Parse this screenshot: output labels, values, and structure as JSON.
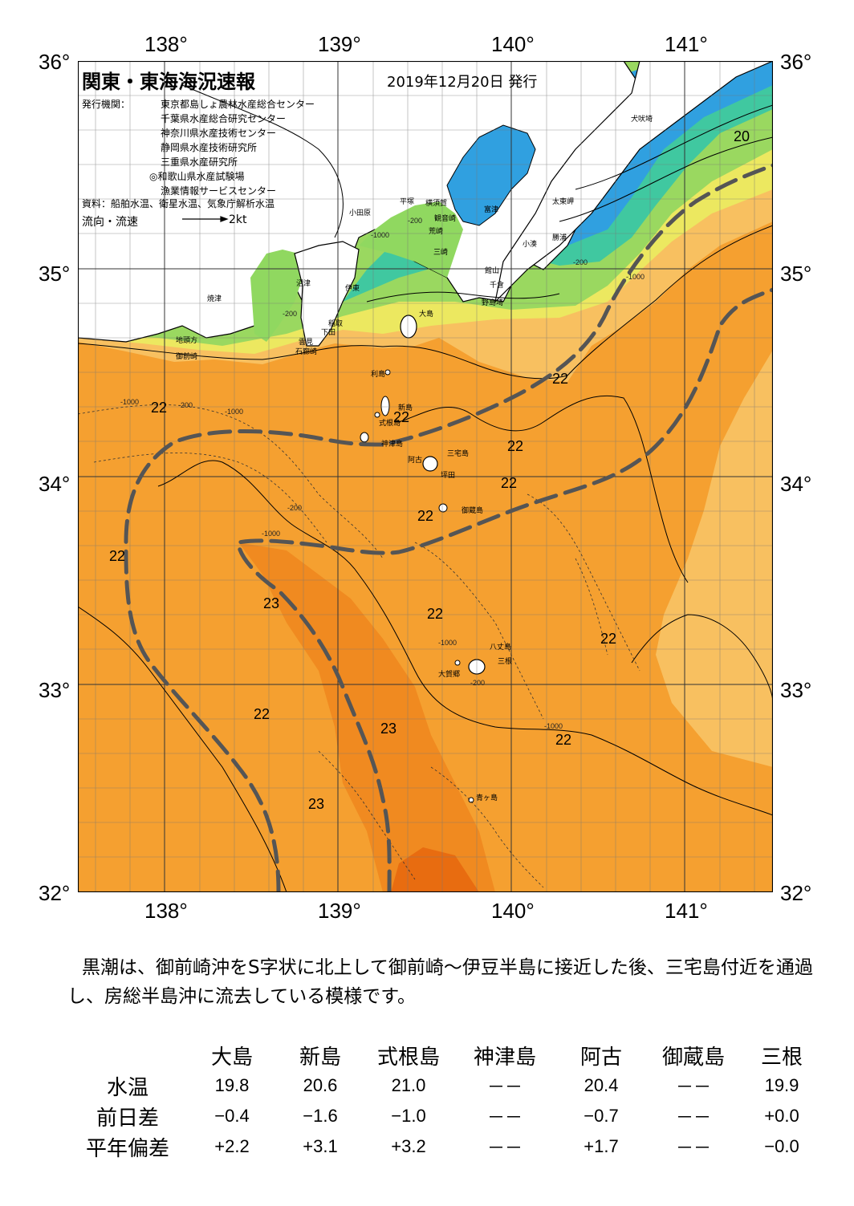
{
  "map": {
    "title": "関東・東海海況速報",
    "date": "2019年12月20日 発行",
    "issuer_label": "発行機関：",
    "issuers": [
      "東京都島しょ農林水産総合センター",
      "千葉県水産総合研究センター",
      "神奈川県水産技術センター",
      "静岡県水産技術研究所",
      "三重県水産研究所",
      "◎和歌山県水産試験場",
      "漁業情報サービスセンター"
    ],
    "source": "資料：船舶水温、衛星水温、気象庁解析水温",
    "flow_label": "流向・流速",
    "flow_scale": "2kt",
    "lon_labels": [
      "138°",
      "139°",
      "140°",
      "141°"
    ],
    "lat_labels": [
      "36°",
      "35°",
      "34°",
      "33°",
      "32°"
    ],
    "places": [
      "犬吠埼",
      "太東岬",
      "勝浦",
      "小湊",
      "館山",
      "千倉",
      "野島埼",
      "富津",
      "横須賀",
      "観音崎",
      "荒崎",
      "三崎",
      "平塚",
      "小田原",
      "沼津",
      "伊東",
      "焼津",
      "稲取",
      "下田",
      "雲見",
      "石廊崎",
      "地頭方",
      "御前崎",
      "大島",
      "利島",
      "新島",
      "式根島",
      "神津島",
      "三宅島",
      "阿古",
      "坪田",
      "御蔵島",
      "八丈島",
      "三根",
      "大賀郷",
      "青ヶ島"
    ],
    "temp_labels": [
      "20",
      "22",
      "22",
      "22",
      "22",
      "22",
      "22",
      "22",
      "22",
      "22",
      "22",
      "22",
      "23",
      "23",
      "23"
    ],
    "contour_labels": [
      "-200",
      "-1000",
      "-200",
      "-1000",
      "-200",
      "-1000",
      "-200",
      "-1000",
      "-200",
      "-1000",
      "-1000",
      "-1000",
      "-200"
    ]
  },
  "description": "黒潮は、御前崎沖をS字状に北上して御前崎～伊豆半島に接近した後、三宅島付近を通過し、房総半島沖に流去している模様です。",
  "table": {
    "columns": [
      "大島",
      "新島",
      "式根島",
      "神津島",
      "阿古",
      "御蔵島",
      "三根"
    ],
    "rows": [
      {
        "label": "水温",
        "values": [
          "19.8",
          "20.6",
          "21.0",
          "－－",
          "20.4",
          "－－",
          "19.9"
        ]
      },
      {
        "label": "前日差",
        "values": [
          "−0.4",
          "−1.6",
          "−1.0",
          "－－",
          "−0.7",
          "－－",
          "+0.0"
        ]
      },
      {
        "label": "平年偏差",
        "values": [
          "+2.2",
          "+3.1",
          "+3.2",
          "－－",
          "+1.7",
          "－－",
          "−0.0"
        ]
      }
    ]
  },
  "colors": {
    "warm_23": "#f08a20",
    "warm_22": "#f5a030",
    "mid_21": "#f8c060",
    "cool_20": "#e8e860",
    "cold_19": "#90d860",
    "cold_17": "#40c8a0",
    "cold_15": "#30a0e0",
    "land": "#ffffff",
    "kuroshio_axis": "#555555"
  }
}
